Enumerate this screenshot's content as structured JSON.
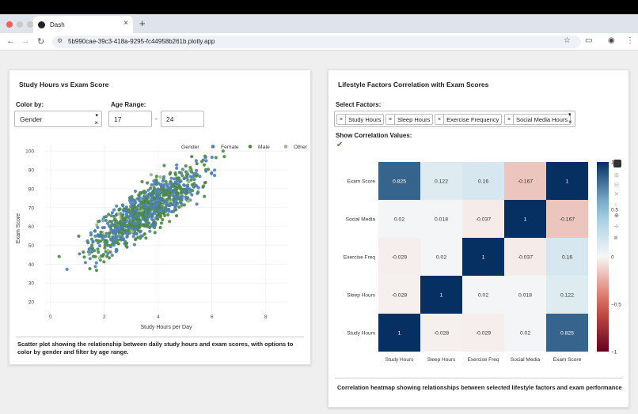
{
  "browser": {
    "tab_title": "Dash",
    "tab_close": "×",
    "new_tab": "+",
    "url": "5b990cae-39c3-418a-9295-fc44958b261b.plotly.app"
  },
  "colors": {
    "female": "#4f7fb8",
    "male": "#4a8a44",
    "other": "#9ab88a",
    "accent": "#4a8a44"
  },
  "left_card": {
    "title": "Study Hours vs Exam Score",
    "color_label": "Color by:",
    "color_value": "Gender",
    "age_label": "Age Range:",
    "age_min": "17",
    "age_sep": "-",
    "age_max": "24",
    "description": "Scatter plot showing the relationship between daily study hours and exam scores, with options to color by gender and filter by age range."
  },
  "right_card": {
    "title": "Lifestyle Factors Correlation with Exam Scores",
    "factors_label": "Select Factors:",
    "factors": [
      "Study Hours",
      "Sleep Hours",
      "Exercise Frequency",
      "Social Media Hours"
    ],
    "show_corr_label": "Show Correlation Values:",
    "checkmark": "✔",
    "description": "Correlation heatmap showing relationships between selected lifestyle factors and exam performance"
  },
  "chart_data": [
    {
      "type": "scatter",
      "xlabel": "Study Hours per Day",
      "ylabel": "Exam Score",
      "xlim": [
        -0.2,
        8.8
      ],
      "ylim": [
        15,
        103
      ],
      "xticks": [
        0,
        2,
        4,
        6,
        8
      ],
      "yticks": [
        20,
        30,
        40,
        50,
        60,
        70,
        80,
        90,
        100
      ],
      "legend_title": "Gender",
      "legend_position": "top-right",
      "series": [
        {
          "name": "Female",
          "color": "#4f7fb8"
        },
        {
          "name": "Male",
          "color": "#4a8a44"
        },
        {
          "name": "Other",
          "color": "#9ab88a"
        }
      ],
      "points_note": "approx. 1000 points, score ≈ 35 + 9.5·hours with noise"
    },
    {
      "type": "heatmap",
      "rows": [
        "Exam Score",
        "Social Media",
        "Exercise Freq",
        "Sleep Hours",
        "Study Hours"
      ],
      "columns": [
        "Study Hours",
        "Sleep Hours",
        "Exercise Freq",
        "Social Media",
        "Exam Score"
      ],
      "values": [
        [
          0.825,
          0.122,
          0.16,
          -0.167,
          1
        ],
        [
          0.02,
          0.018,
          -0.037,
          1,
          -0.167
        ],
        [
          -0.029,
          0.02,
          1,
          -0.037,
          0.16
        ],
        [
          -0.028,
          1,
          0.02,
          0.018,
          0.122
        ],
        [
          1,
          -0.028,
          -0.029,
          0.02,
          0.825
        ]
      ],
      "colorbar_ticks": [
        1,
        0.5,
        0,
        -0.5,
        -1
      ],
      "colorbar_tick_labels": [
        "1",
        "0.5",
        "0",
        "−0.5",
        "−1"
      ],
      "zlim": [
        -1,
        1
      ]
    }
  ]
}
